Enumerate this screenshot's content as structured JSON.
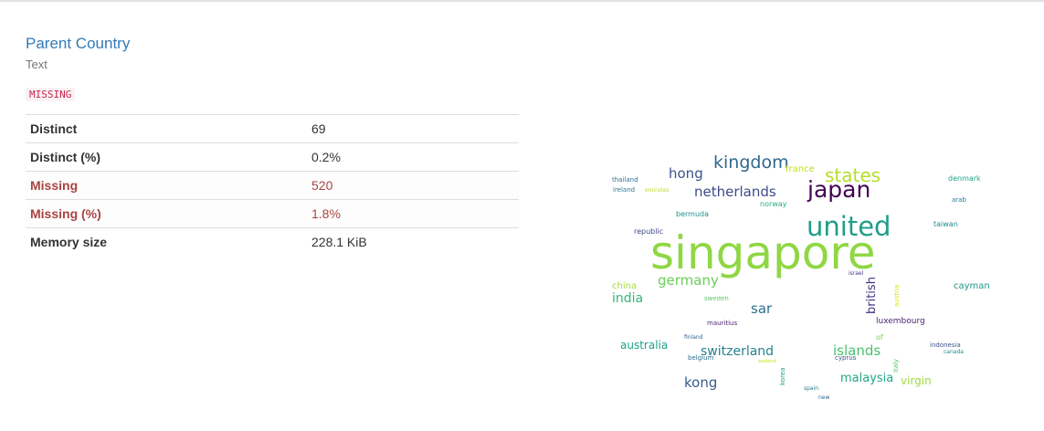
{
  "variable": {
    "name": "Parent Country",
    "type": "Text",
    "badge": "MISSING"
  },
  "stats": [
    {
      "label": "Distinct",
      "value": "69",
      "alert": false
    },
    {
      "label": "Distinct (%)",
      "value": "0.2%",
      "alert": false
    },
    {
      "label": "Missing",
      "value": "520",
      "alert": true
    },
    {
      "label": "Missing (%)",
      "value": "1.8%",
      "alert": true
    },
    {
      "label": "Memory size",
      "value": "228.1 KiB",
      "alert": false
    }
  ],
  "wordcloud": {
    "words": [
      {
        "text": "singapore",
        "color": "#8fd744"
      },
      {
        "text": "united",
        "color": "#1f9e89"
      },
      {
        "text": "kingdom",
        "color": "#31688e"
      },
      {
        "text": "japan",
        "color": "#440154"
      },
      {
        "text": "states",
        "color": "#b5de2b"
      },
      {
        "text": "netherlands",
        "color": "#3e4a89"
      },
      {
        "text": "hong",
        "color": "#3b528b"
      },
      {
        "text": "france",
        "color": "#c2df23"
      },
      {
        "text": "germany",
        "color": "#6ccd5a"
      },
      {
        "text": "india",
        "color": "#35b779"
      },
      {
        "text": "sar",
        "color": "#2d708e"
      },
      {
        "text": "switzerland",
        "color": "#26828e"
      },
      {
        "text": "islands",
        "color": "#4ac16d"
      },
      {
        "text": "australia",
        "color": "#1fa187"
      },
      {
        "text": "kong",
        "color": "#365c8d"
      },
      {
        "text": "malaysia",
        "color": "#22a884"
      },
      {
        "text": "virgin",
        "color": "#a0da39"
      },
      {
        "text": "british",
        "color": "#46327e"
      },
      {
        "text": "cayman",
        "color": "#1f968b"
      },
      {
        "text": "luxembourg",
        "color": "#482677"
      },
      {
        "text": "thailand",
        "color": "#2c728e"
      },
      {
        "text": "ireland",
        "color": "#2a788e"
      },
      {
        "text": "emirates",
        "color": "#bddf26"
      },
      {
        "text": "bermuda",
        "color": "#21918c"
      },
      {
        "text": "norway",
        "color": "#27ad81"
      },
      {
        "text": "republic",
        "color": "#3f4788"
      },
      {
        "text": "denmark",
        "color": "#20a486"
      },
      {
        "text": "arab",
        "color": "#29798e"
      },
      {
        "text": "taiwan",
        "color": "#228c8d"
      },
      {
        "text": "israel",
        "color": "#443983"
      },
      {
        "text": "austria",
        "color": "#d8e219"
      },
      {
        "text": "china",
        "color": "#a5db36"
      },
      {
        "text": "sweden",
        "color": "#5ec962"
      },
      {
        "text": "mauritius",
        "color": "#481f70"
      },
      {
        "text": "finland",
        "color": "#33638d"
      },
      {
        "text": "belgium",
        "color": "#2e6f8e"
      },
      {
        "text": "zealand",
        "color": "#d0e11c"
      },
      {
        "text": "korea",
        "color": "#1e9b8a"
      },
      {
        "text": "cyprus",
        "color": "#39568c"
      },
      {
        "text": "italy",
        "color": "#54c568"
      },
      {
        "text": "of",
        "color": "#7ad151"
      },
      {
        "text": "indonesia",
        "color": "#3b528b"
      },
      {
        "text": "canada",
        "color": "#25848e"
      },
      {
        "text": "spain",
        "color": "#2a788e"
      },
      {
        "text": "new",
        "color": "#31688e"
      }
    ]
  }
}
